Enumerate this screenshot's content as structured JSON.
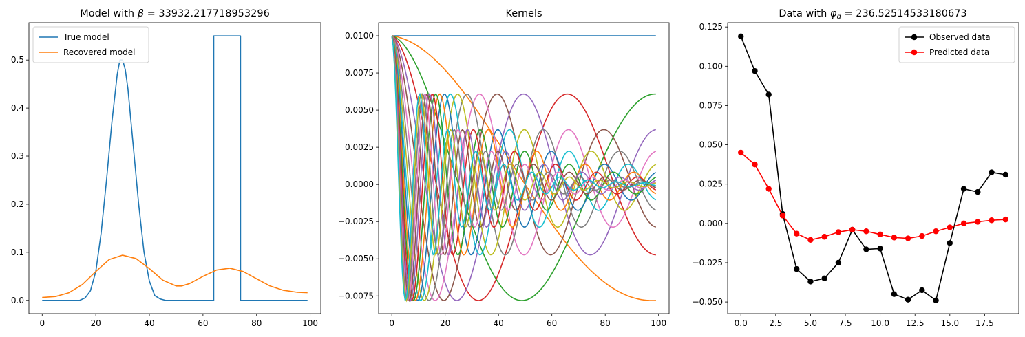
{
  "chart_data": [
    {
      "type": "line",
      "title_prefix": "Model with ",
      "title_symbol": "β",
      "title_value": " = 33932.217718953296",
      "xlabel": "",
      "ylabel": "",
      "xlim": [
        -4.95,
        103.95
      ],
      "ylim": [
        -0.0275,
        0.5775
      ],
      "xticks": [
        0,
        20,
        40,
        60,
        80,
        100
      ],
      "xtick_labels": [
        "0",
        "20",
        "40",
        "60",
        "80",
        "100"
      ],
      "yticks": [
        0.0,
        0.1,
        0.2,
        0.3,
        0.4,
        0.5
      ],
      "ytick_labels": [
        "0.0",
        "0.1",
        "0.2",
        "0.3",
        "0.4",
        "0.5"
      ],
      "grid": false,
      "legend_position": "upper-left",
      "series": [
        {
          "name": "True model",
          "color": "#1f77b4",
          "x": [
            0,
            14,
            16,
            18,
            20,
            22,
            24,
            26,
            28,
            29,
            30,
            31,
            32,
            34,
            36,
            38,
            40,
            42,
            44,
            46,
            48,
            64,
            64.01,
            74,
            74.01,
            99
          ],
          "y": [
            0,
            0,
            0.005,
            0.02,
            0.06,
            0.14,
            0.25,
            0.37,
            0.47,
            0.5,
            0.5,
            0.48,
            0.44,
            0.32,
            0.2,
            0.1,
            0.04,
            0.01,
            0.003,
            0,
            0,
            0,
            0.55,
            0.55,
            0,
            0
          ]
        },
        {
          "name": "Recovered model",
          "color": "#ff7f0e",
          "x": [
            0,
            5,
            10,
            15,
            20,
            25,
            30,
            35,
            40,
            45,
            50,
            52,
            55,
            60,
            65,
            70,
            75,
            80,
            85,
            90,
            95,
            99
          ],
          "y": [
            0.006,
            0.008,
            0.016,
            0.033,
            0.06,
            0.085,
            0.094,
            0.087,
            0.066,
            0.042,
            0.03,
            0.03,
            0.035,
            0.05,
            0.063,
            0.067,
            0.06,
            0.045,
            0.03,
            0.021,
            0.017,
            0.016
          ]
        }
      ]
    },
    {
      "type": "line",
      "title": "Kernels",
      "xlabel": "",
      "ylabel": "",
      "xlim": [
        -4.95,
        103.95
      ],
      "ylim": [
        -0.00869,
        0.01088
      ],
      "xticks": [
        0,
        20,
        40,
        60,
        80,
        100
      ],
      "xtick_labels": [
        "0",
        "20",
        "40",
        "60",
        "80",
        "100"
      ],
      "yticks": [
        -0.0075,
        -0.005,
        -0.0025,
        0.0,
        0.0025,
        0.005,
        0.0075,
        0.01
      ],
      "ytick_labels": [
        "−0.0075",
        "−0.0050",
        "−0.0025",
        "0.0000",
        "0.0025",
        "0.0050",
        "0.0075",
        "0.0100"
      ],
      "grid": false,
      "legend_position": "none",
      "kernel_count": 20,
      "kernel_x": [
        0,
        99
      ],
      "kernel_amplitude": 0.01,
      "kernel_decay": 0.25,
      "color_cycle": [
        "#1f77b4",
        "#ff7f0e",
        "#2ca02c",
        "#d62728",
        "#9467bd",
        "#8c564b",
        "#e377c2",
        "#7f7f7f",
        "#bcbd22",
        "#17becf"
      ]
    },
    {
      "type": "line",
      "title_prefix": "Data with ",
      "title_symbol": "φ",
      "title_subscript": "d",
      "title_value": " = 236.52514533180673",
      "xlabel": "",
      "ylabel": "",
      "xlim": [
        -0.95,
        19.95
      ],
      "ylim": [
        -0.0574,
        0.1277
      ],
      "xticks": [
        0,
        2.5,
        5,
        7.5,
        10,
        12.5,
        15,
        17.5
      ],
      "xtick_labels": [
        "0.0",
        "2.5",
        "5.0",
        "7.5",
        "10.0",
        "12.5",
        "15.0",
        "17.5"
      ],
      "yticks": [
        -0.05,
        -0.025,
        0.0,
        0.025,
        0.05,
        0.075,
        0.1,
        0.125
      ],
      "ytick_labels": [
        "−0.050",
        "−0.025",
        "0.000",
        "0.025",
        "0.050",
        "0.075",
        "0.100",
        "0.125"
      ],
      "grid": false,
      "legend_position": "upper-right",
      "series": [
        {
          "name": "Observed data",
          "color": "#000000",
          "marker": "circle",
          "x": [
            0,
            1,
            2,
            3,
            4,
            5,
            6,
            7,
            8,
            9,
            10,
            11,
            12,
            13,
            14,
            15,
            16,
            17,
            18,
            19
          ],
          "y": [
            0.119,
            0.097,
            0.082,
            0.006,
            -0.029,
            -0.037,
            -0.035,
            -0.025,
            -0.004,
            -0.0165,
            -0.016,
            -0.045,
            -0.0485,
            -0.0425,
            -0.049,
            -0.0125,
            0.022,
            0.02,
            0.0325,
            0.031
          ]
        },
        {
          "name": "Predicted data",
          "color": "#ff0000",
          "marker": "circle",
          "x": [
            0,
            1,
            2,
            3,
            4,
            5,
            6,
            7,
            8,
            9,
            10,
            11,
            12,
            13,
            14,
            15,
            16,
            17,
            18,
            19
          ],
          "y": [
            0.045,
            0.0375,
            0.022,
            0.005,
            -0.0065,
            -0.0105,
            -0.0085,
            -0.0055,
            -0.004,
            -0.005,
            -0.007,
            -0.009,
            -0.0095,
            -0.008,
            -0.005,
            -0.0025,
            0.0,
            0.001,
            0.002,
            0.0025
          ]
        }
      ]
    }
  ]
}
